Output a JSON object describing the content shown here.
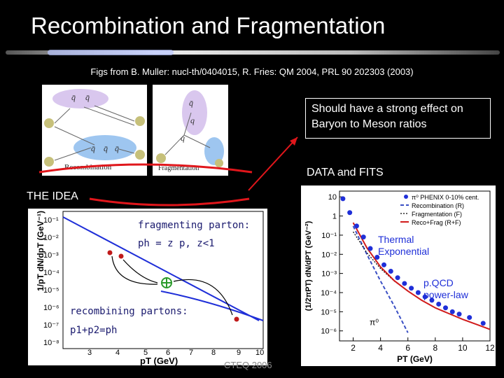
{
  "slide": {
    "title": "Recombination and Fragmentation",
    "subtitle": "Figs from B. Muller: nucl-th/0404015, R. Fries: QM 2004, PRL 90  202303 (2003)",
    "callout": "Should have a strong effect on Baryon to Meson ratios",
    "data_label": "DATA and FITS",
    "idea_label": "THE IDEA",
    "footer": "CTEQ 2006"
  },
  "diagrams": {
    "recombination_caption": "Recombination",
    "fragmentation_caption": "Fragmentation",
    "q_glyph": "q",
    "qbar_glyph": "q̄"
  },
  "idea_plot": {
    "fragmenting_label": "fragmenting parton:",
    "fragmenting_formula": "ph = z p, z<1",
    "recombining_label": "recombining partons:",
    "recombining_formula": "p1+p2=ph",
    "ylabel": "1/pT dN/dpT (GeV⁻¹)",
    "xlabel": "pT (GeV)",
    "yticks": [
      "10⁻¹",
      "10⁻²",
      "10⁻³",
      "10⁻⁴",
      "10⁻⁵",
      "10⁻⁶",
      "10⁻⁷",
      "10⁻⁸"
    ],
    "xticks": [
      "3",
      "4",
      "5",
      "6",
      "7",
      "8",
      "9",
      "10"
    ]
  },
  "chart_data": {
    "type": "scatter",
    "legend": [
      "π⁰ PHENIX 0-10% cent.",
      "Recombination (R)",
      "Fragmentation (F)",
      "Reco+Frag (R+F)"
    ],
    "legend_placement": "top-right",
    "ylabel": "(1/2πPT) dN/dPT (GeV⁻²)",
    "xlabel": "PT (GeV)",
    "xlim": [
      1,
      12
    ],
    "ylog": true,
    "ylim": [
      3e-07,
      20
    ],
    "xticks": [
      "2",
      "4",
      "6",
      "8",
      "10",
      "12"
    ],
    "yticks": [
      "10",
      "1",
      "10⁻¹",
      "10⁻²",
      "10⁻³",
      "10⁻⁴",
      "10⁻⁵",
      "10⁻⁶"
    ],
    "annotations": [
      "π⁰"
    ],
    "x": [
      1.25,
      1.75,
      2.25,
      2.75,
      3.25,
      3.75,
      4.25,
      4.75,
      5.25,
      5.75,
      6.25,
      6.75,
      7.25,
      7.75,
      8.25,
      8.75,
      9.25,
      9.75,
      10.5,
      11.5
    ],
    "y": [
      8,
      1.5,
      0.3,
      0.08,
      0.02,
      0.007,
      0.0028,
      0.0013,
      0.0006,
      0.0003,
      0.00017,
      0.0001,
      6e-05,
      4e-05,
      2.5e-05,
      1.6e-05,
      1e-05,
      7.5e-06,
      5e-06,
      2.5e-06
    ],
    "series": [
      {
        "name": "Recombination (R)",
        "x": [
          2,
          3,
          4,
          5,
          6
        ],
        "y": [
          0.3,
          0.01,
          0.0004,
          2e-05,
          8e-07
        ]
      },
      {
        "name": "Fragmentation (F)",
        "x": [
          2,
          3,
          4,
          5,
          6,
          7,
          8,
          9,
          10,
          11,
          12
        ],
        "y": [
          0.15,
          0.012,
          0.0018,
          0.0004,
          0.00012,
          4e-05,
          1.6e-05,
          8e-06,
          4e-06,
          2.2e-06,
          1.2e-06
        ]
      },
      {
        "name": "Reco+Frag (R+F)",
        "x": [
          2,
          3,
          4,
          5,
          6,
          7,
          8,
          9,
          10,
          11,
          12
        ],
        "y": [
          0.45,
          0.022,
          0.0022,
          0.00042,
          0.00012,
          4e-05,
          1.6e-05,
          8e-06,
          4e-06,
          2.2e-06,
          1.2e-06
        ]
      }
    ],
    "side_labels": [
      "Thermal Exponential",
      "p.QCD power-law"
    ]
  },
  "colors": {
    "accent_red": "#e0161b",
    "data_blue": "#1f2fd8",
    "reco_blue": "#3a4fc4",
    "curve_red": "#d11b1b"
  }
}
